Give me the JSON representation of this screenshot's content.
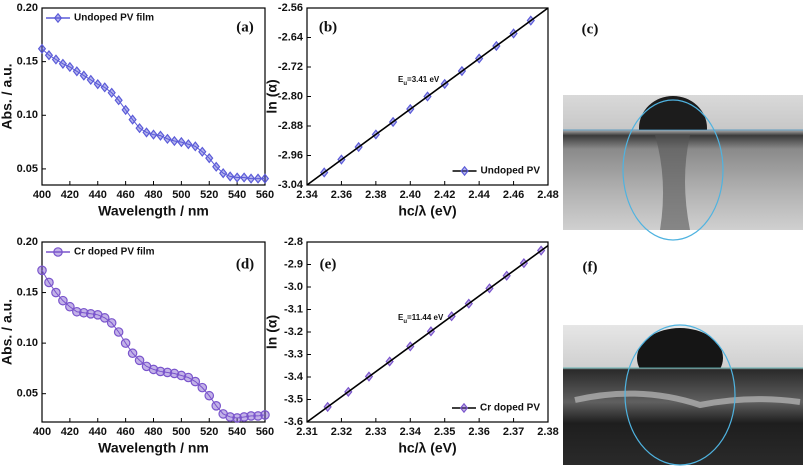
{
  "chart_data": [
    {
      "type": "line",
      "panel_label": "(a)",
      "xlabel": "Wavelength / nm",
      "ylabel": "Abs. / a.u.",
      "x": [
        400,
        405,
        410,
        415,
        420,
        425,
        430,
        435,
        440,
        445,
        450,
        455,
        460,
        465,
        470,
        475,
        480,
        485,
        490,
        495,
        500,
        505,
        510,
        515,
        520,
        525,
        530,
        535,
        540,
        545,
        550,
        555,
        560
      ],
      "series": [
        {
          "name": "Undoped PV film",
          "color": "#5b5bd8",
          "marker": "diamond",
          "values": [
            0.162,
            0.156,
            0.152,
            0.148,
            0.145,
            0.141,
            0.137,
            0.133,
            0.129,
            0.126,
            0.121,
            0.114,
            0.105,
            0.096,
            0.088,
            0.084,
            0.082,
            0.081,
            0.078,
            0.076,
            0.075,
            0.073,
            0.071,
            0.066,
            0.06,
            0.052,
            0.046,
            0.043,
            0.042,
            0.042,
            0.041,
            0.041,
            0.041
          ]
        }
      ],
      "xlim": [
        400,
        560
      ],
      "xticks": [
        400,
        420,
        440,
        460,
        480,
        500,
        520,
        540,
        560
      ],
      "ylim": [
        0.035,
        0.2
      ],
      "yticks": [
        0.05,
        {
          "value": 0.1,
          "label": "0.10"
        },
        0.15,
        {
          "value": 0.2,
          "label": "0.20"
        }
      ],
      "legend": "upper left"
    },
    {
      "type": "scatter",
      "panel_label": "(b)",
      "xlabel": "hc/λ (eV)",
      "ylabel": "ln (α)",
      "annotation": [
        "E",
        "u",
        "=3.41 eV"
      ],
      "series": [
        {
          "name": "Undoped PV",
          "color": "#5b5bd8",
          "marker": "diamond",
          "x": [
            2.35,
            2.36,
            2.37,
            2.38,
            2.39,
            2.4,
            2.41,
            2.42,
            2.43,
            2.44,
            2.45,
            2.46,
            2.47
          ],
          "values": [
            -3.006,
            -2.971,
            -2.937,
            -2.903,
            -2.869,
            -2.834,
            -2.8,
            -2.766,
            -2.731,
            -2.697,
            -2.663,
            -2.629,
            -2.594
          ]
        },
        {
          "color": "#000000",
          "x": [
            2.34,
            2.48
          ],
          "values": [
            -3.04,
            -2.56
          ]
        }
      ],
      "xlim": [
        2.34,
        2.48
      ],
      "xticks": [
        2.34,
        2.36,
        2.38,
        {
          "value": 2.4,
          "label": "2.40"
        },
        2.42,
        2.44,
        2.46,
        2.48
      ],
      "ylim": [
        -3.04,
        -2.56
      ],
      "yticks": [
        -3.04,
        -2.96,
        -2.88,
        {
          "value": -2.8,
          "label": "-2.80"
        },
        -2.72,
        -2.64,
        -2.56
      ],
      "legend": "lower right"
    },
    {
      "type": "line",
      "panel_label": "(d)",
      "xlabel": "Wavelength / nm",
      "ylabel": "Abs. / a.u.",
      "x": [
        400,
        405,
        410,
        415,
        420,
        425,
        430,
        435,
        440,
        445,
        450,
        455,
        460,
        465,
        470,
        475,
        480,
        485,
        490,
        495,
        500,
        505,
        510,
        515,
        520,
        525,
        530,
        535,
        540,
        545,
        550,
        555,
        560
      ],
      "series": [
        {
          "name": "Cr doped PV film",
          "color": "#7a55cc",
          "marker": "circle",
          "values": [
            0.172,
            0.16,
            0.15,
            0.142,
            0.136,
            0.131,
            0.13,
            0.129,
            0.128,
            0.125,
            0.12,
            0.111,
            0.1,
            0.09,
            0.083,
            0.077,
            0.074,
            0.072,
            0.071,
            0.07,
            0.068,
            0.066,
            0.062,
            0.056,
            0.048,
            0.038,
            0.03,
            0.027,
            0.026,
            0.027,
            0.028,
            0.028,
            0.029
          ]
        }
      ],
      "xlim": [
        400,
        560
      ],
      "xticks": [
        400,
        420,
        440,
        460,
        480,
        500,
        520,
        540,
        560
      ],
      "ylim": [
        0.022,
        0.2
      ],
      "yticks": [
        0.05,
        {
          "value": 0.1,
          "label": "0.10"
        },
        0.15,
        {
          "value": 0.2,
          "label": "0.20"
        }
      ],
      "legend": "upper left"
    },
    {
      "type": "scatter",
      "panel_label": "(e)",
      "xlabel": "hc/λ (eV)",
      "ylabel": "ln (α)",
      "annotation": [
        "E",
        "u",
        "=11.44 eV"
      ],
      "series": [
        {
          "name": "Cr doped PV",
          "color": "#7a55cc",
          "marker": "diamond",
          "x": [
            2.316,
            2.322,
            2.328,
            2.334,
            2.34,
            2.346,
            2.352,
            2.357,
            2.363,
            2.368,
            2.373,
            2.378
          ],
          "values": [
            -3.533,
            -3.466,
            -3.398,
            -3.331,
            -3.264,
            -3.197,
            -3.13,
            -3.074,
            -3.006,
            -2.95,
            -2.894,
            -2.838
          ]
        },
        {
          "color": "#000000",
          "x": [
            2.31,
            2.38
          ],
          "values": [
            -3.6,
            -2.816
          ]
        }
      ],
      "xlim": [
        2.31,
        2.38
      ],
      "xticks": [
        2.31,
        2.32,
        2.33,
        2.34,
        2.35,
        2.36,
        2.37,
        2.38
      ],
      "ylim": [
        -3.6,
        -2.8
      ],
      "yticks": [
        -3.6,
        -3.5,
        -3.4,
        -3.3,
        -3.2,
        -3.1,
        {
          "value": -3,
          "label": "-3.0"
        },
        -2.9,
        -2.8
      ],
      "legend": "lower right"
    }
  ],
  "images": [
    {
      "label": "(c)"
    },
    {
      "label": "(f)"
    }
  ]
}
